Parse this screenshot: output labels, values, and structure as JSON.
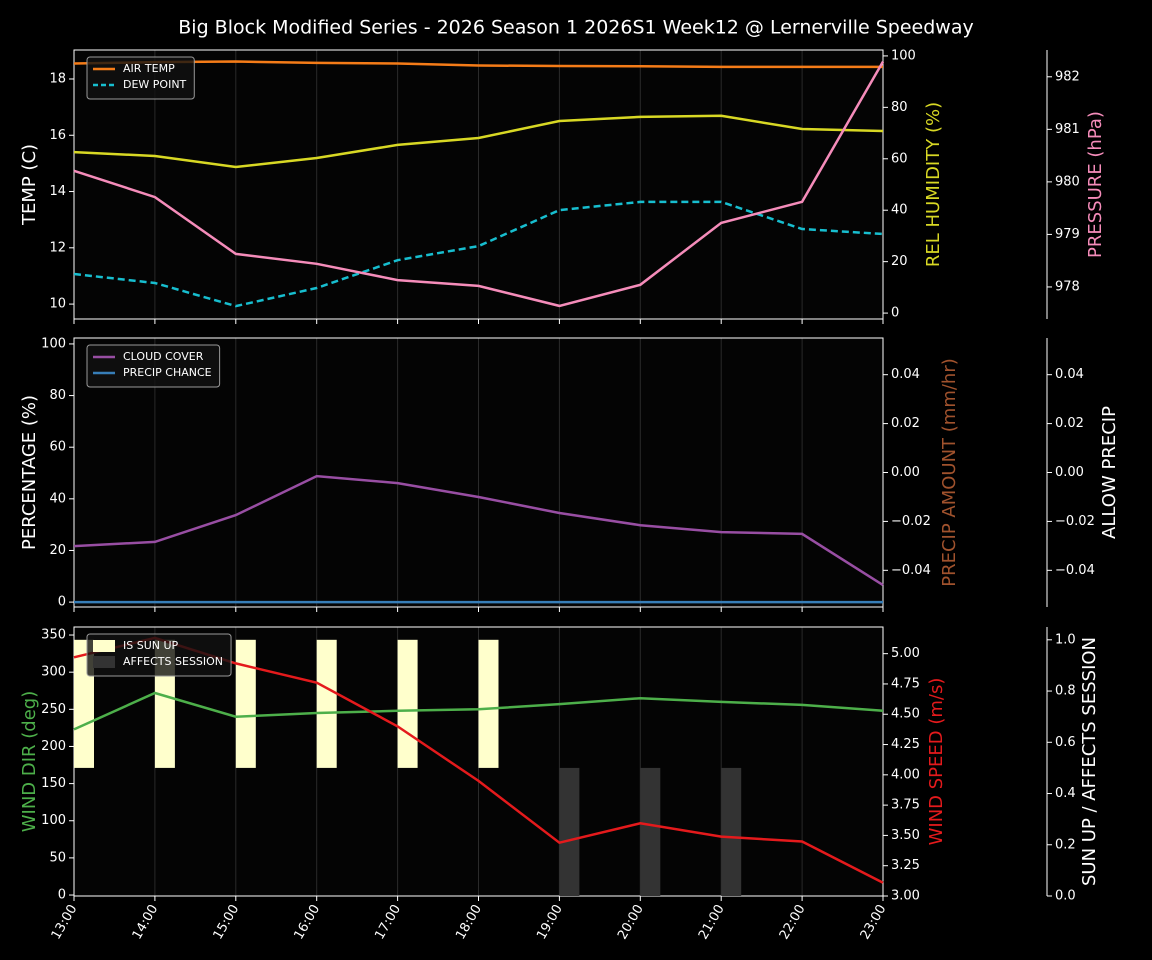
{
  "title": "Big Block Modified Series - 2026 Season 1 2026S1 Week12 @ Lernerville Speedway",
  "chart_data": [
    {
      "type": "line",
      "legend": "upper left",
      "ylabel": "TEMP (C)",
      "ylabel_color": "#ffffff",
      "ylim": [
        9.47,
        19.03
      ],
      "yticks": [
        10,
        12,
        14,
        16,
        18
      ],
      "y2label": "REL HUMIDITY (%)",
      "y2label_color": "#d8d824",
      "y2lim": [
        -2.3,
        102.3
      ],
      "y2ticks": [
        0,
        20,
        40,
        60,
        80,
        100
      ],
      "y3label": "PRESSURE (hPa)",
      "y3label_color": "#f58cba",
      "y3lim": [
        977.39,
        982.51
      ],
      "y3ticks": [
        978,
        979,
        980,
        981,
        982
      ],
      "series": [
        {
          "name": "AIR TEMP",
          "color": "#f57c18",
          "axis": "y",
          "values": [
            18.55,
            18.6,
            18.62,
            18.57,
            18.55,
            18.48,
            18.46,
            18.45,
            18.43,
            18.43,
            18.43
          ]
        },
        {
          "name": "DEW POINT",
          "color": "#17becf",
          "dashed": true,
          "axis": "y",
          "values": [
            11.07,
            10.75,
            9.93,
            10.57,
            11.56,
            12.06,
            13.34,
            13.63,
            13.63,
            12.67,
            12.49
          ]
        },
        {
          "color": "#d8d824",
          "axis": "y2",
          "values": [
            62.6,
            61.1,
            56.8,
            60.3,
            65.4,
            68.1,
            74.7,
            76.3,
            76.7,
            71.6,
            70.8
          ]
        },
        {
          "color": "#f58cba",
          "axis": "y3",
          "values": [
            980.21,
            979.71,
            978.63,
            978.44,
            978.13,
            978.02,
            977.64,
            978.04,
            979.22,
            979.62,
            982.29
          ]
        }
      ]
    },
    {
      "type": "line",
      "legend": "upper left",
      "ylabel": "PERCENTAGE (%)",
      "ylabel_color": "#ffffff",
      "ylim": [
        -1.9,
        102.3
      ],
      "yticks": [
        0,
        20,
        40,
        60,
        80,
        100
      ],
      "y2label": "PRECIP AMOUNT (mm/hr)",
      "y2label_color": "#a0522d",
      "y2lim": [
        -0.055,
        0.055
      ],
      "y2ticks": [
        {
          "value": -0.04,
          "label": "−0.04"
        },
        {
          "value": -0.02,
          "label": "−0.02"
        },
        {
          "value": 0,
          "label": "0.00"
        },
        0.02,
        0.04
      ],
      "y3label": "ALLOW PRECIP",
      "y3label_color": "#ffffff",
      "y3lim": [
        -0.055,
        0.055
      ],
      "y3ticks": [
        {
          "value": -0.04,
          "label": "−0.04"
        },
        {
          "value": -0.02,
          "label": "−0.02"
        },
        {
          "value": 0,
          "label": "0.00"
        },
        0.02,
        0.04
      ],
      "series": [
        {
          "name": "CLOUD COVER",
          "color": "#984ea3",
          "axis": "y",
          "values": [
            21.7,
            23.3,
            33.7,
            48.8,
            46.1,
            40.7,
            34.5,
            29.8,
            27.1,
            26.4,
            6.6
          ]
        },
        {
          "name": "PRECIP CHANCE",
          "color": "#377eb8",
          "axis": "y",
          "values": [
            0,
            0,
            0,
            0,
            0,
            0,
            0,
            0,
            0,
            0,
            0
          ]
        }
      ]
    },
    {
      "type": "line",
      "legend": "upper left",
      "categories": [
        "13:00",
        "14:00",
        "15:00",
        "16:00",
        "17:00",
        "18:00",
        "19:00",
        "20:00",
        "21:00",
        "22:00",
        "23:00"
      ],
      "ylabel": "WIND DIR (deg)",
      "ylabel_color": "#4daf4a",
      "ylim": [
        -1.3,
        360.8
      ],
      "yticks": [
        0,
        50,
        100,
        150,
        200,
        250,
        300,
        350
      ],
      "y2label": "WIND SPEED (m/s)",
      "y2label_color": "#e41a1c",
      "y2lim": [
        3.0,
        5.22
      ],
      "y2ticks": [
        {
          "value": 3,
          "label": "3.00"
        },
        3.25,
        {
          "value": 3.5,
          "label": "3.50"
        },
        3.75,
        {
          "value": 4,
          "label": "4.00"
        },
        4.25,
        {
          "value": 4.5,
          "label": "4.50"
        },
        4.75,
        {
          "value": 5,
          "label": "5.00"
        }
      ],
      "y3label": "SUN UP / AFFECTS SESSION",
      "y3label_color": "#ffffff",
      "y3lim": [
        0,
        1.05
      ],
      "y3ticks": [
        {
          "value": 0,
          "label": "0.0"
        },
        0.2,
        0.4,
        0.6,
        0.8,
        {
          "value": 1,
          "label": "1.0"
        }
      ],
      "series": [
        {
          "name": "IS SUN UP",
          "kind": "bar",
          "color": "#ffffcc",
          "axis": "y3",
          "base": 0.5,
          "values": [
            1,
            1,
            1,
            1,
            1,
            1,
            null,
            null,
            null,
            null,
            null
          ]
        },
        {
          "name": "AFFECTS SESSION",
          "kind": "bar",
          "color": "#333333",
          "axis": "y3",
          "base": 0,
          "values": [
            null,
            null,
            null,
            null,
            null,
            null,
            0.5,
            0.5,
            0.5,
            null,
            null
          ]
        },
        {
          "color": "#4daf4a",
          "axis": "y",
          "values": [
            223,
            272,
            240,
            245,
            248,
            250,
            257,
            265,
            260,
            256,
            248
          ]
        },
        {
          "color": "#e41a1c",
          "axis": "y2",
          "values": [
            4.97,
            5.13,
            4.92,
            4.76,
            4.4,
            3.95,
            3.44,
            3.6,
            3.49,
            3.45,
            3.11
          ]
        }
      ]
    }
  ]
}
